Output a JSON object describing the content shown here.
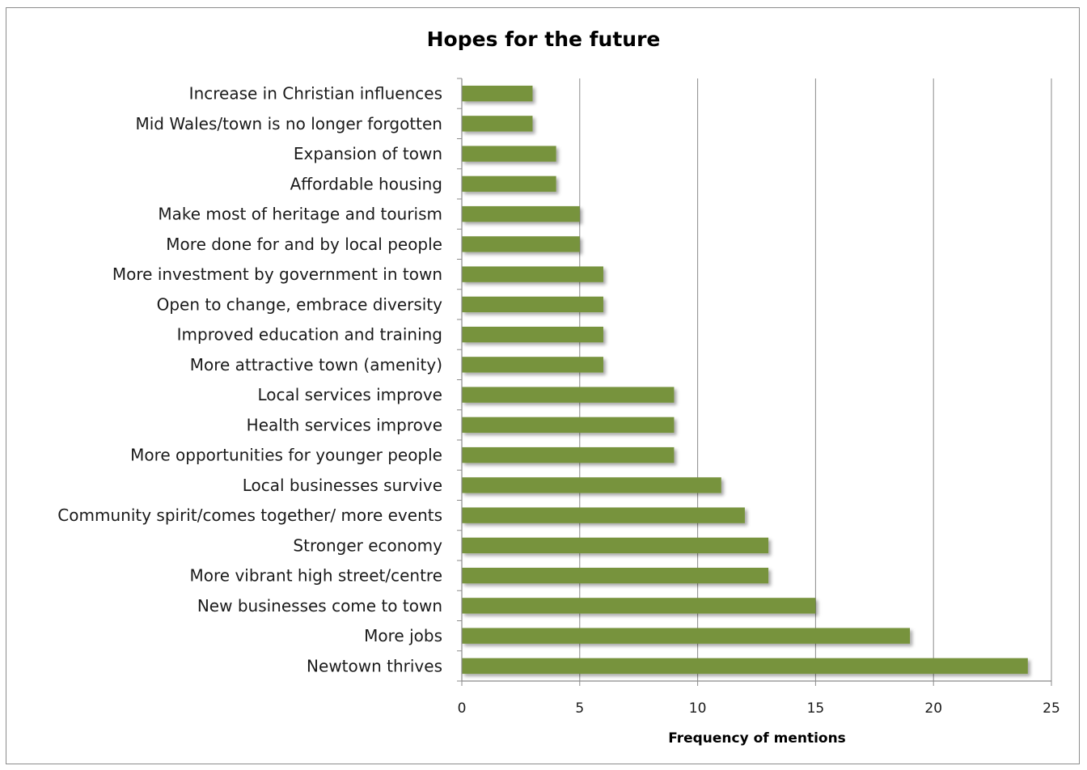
{
  "chart_data": {
    "type": "bar",
    "orientation": "horizontal",
    "title": "Hopes for the future",
    "xlabel": "Frequency of mentions",
    "ylabel": "",
    "xlim": [
      0,
      25
    ],
    "x_ticks": [
      0,
      5,
      10,
      15,
      20,
      25
    ],
    "grid": "vertical major gridlines",
    "legend": "none",
    "bar_color": "#77933c",
    "categories": [
      "Increase in Christian influences",
      "Mid Wales/town is no longer forgotten",
      "Expansion of town",
      "Affordable housing",
      "Make most of heritage and tourism",
      "More done for and by local people",
      "More investment by government in town",
      "Open to change, embrace diversity",
      "Improved education and training",
      "More attractive town (amenity)",
      "Local services improve",
      "Health services improve",
      "More opportunities for younger people",
      "Local businesses survive",
      "Community spirit/comes together/ more events",
      "Stronger economy",
      "More vibrant high street/centre",
      "New businesses come to town",
      "More jobs",
      "Newtown thrives"
    ],
    "values": [
      3,
      3,
      4,
      4,
      5,
      5,
      6,
      6,
      6,
      6,
      9,
      9,
      9,
      11,
      12,
      13,
      13,
      15,
      19,
      24
    ]
  }
}
